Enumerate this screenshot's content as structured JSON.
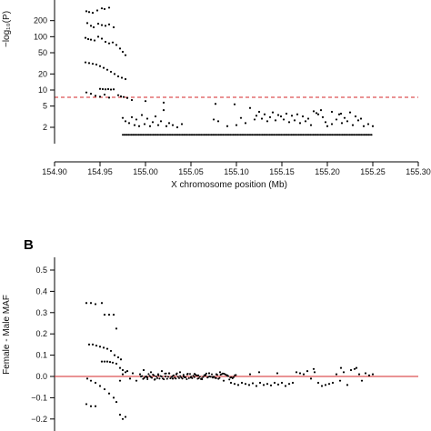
{
  "chart_data": [
    {
      "type": "scatter",
      "panel_label": "",
      "xlabel": "X chromosome position (Mb)",
      "ylabel": "−log₁₀(P)",
      "y_scale": "log",
      "xlim": [
        154.9,
        155.3
      ],
      "ylim": [
        1.3,
        380
      ],
      "x_ticks": [
        "154.90",
        "154.95",
        "155.00",
        "155.05",
        "155.10",
        "155.15",
        "155.20",
        "155.25",
        "155.30"
      ],
      "y_ticks": [
        {
          "value": 2,
          "label": "2"
        },
        {
          "value": 5,
          "label": "5"
        },
        {
          "value": 10,
          "label": "10"
        },
        {
          "value": 20,
          "label": "20"
        },
        {
          "value": 50,
          "label": "50"
        },
        {
          "value": 100,
          "label": "100"
        },
        {
          "value": 200,
          "label": "200"
        }
      ],
      "threshold": {
        "y": 7.3,
        "style": "dashed",
        "color": "#d62728"
      },
      "points": [
        [
          154.935,
          300
        ],
        [
          154.938,
          290
        ],
        [
          154.942,
          280
        ],
        [
          154.947,
          310
        ],
        [
          154.952,
          340
        ],
        [
          154.955,
          330
        ],
        [
          154.96,
          350
        ],
        [
          154.936,
          180
        ],
        [
          154.94,
          160
        ],
        [
          154.943,
          150
        ],
        [
          154.948,
          175
        ],
        [
          154.952,
          165
        ],
        [
          154.956,
          160
        ],
        [
          154.96,
          170
        ],
        [
          154.965,
          150
        ],
        [
          154.934,
          95
        ],
        [
          154.937,
          90
        ],
        [
          154.94,
          88
        ],
        [
          154.944,
          85
        ],
        [
          154.948,
          100
        ],
        [
          154.952,
          92
        ],
        [
          154.956,
          80
        ],
        [
          154.96,
          75
        ],
        [
          154.964,
          78
        ],
        [
          154.968,
          70
        ],
        [
          154.972,
          60
        ],
        [
          154.975,
          52
        ],
        [
          154.978,
          45
        ],
        [
          154.934,
          33
        ],
        [
          154.938,
          32
        ],
        [
          154.942,
          31
        ],
        [
          154.946,
          30
        ],
        [
          154.95,
          28
        ],
        [
          154.954,
          26
        ],
        [
          154.958,
          24
        ],
        [
          154.962,
          22
        ],
        [
          154.966,
          20
        ],
        [
          154.97,
          18
        ],
        [
          154.974,
          17
        ],
        [
          154.978,
          16
        ],
        [
          154.95,
          10.5
        ],
        [
          154.953,
          10.4
        ],
        [
          154.956,
          10.3
        ],
        [
          154.959,
          10.4
        ],
        [
          154.962,
          10.2
        ],
        [
          154.965,
          10.3
        ],
        [
          154.97,
          8
        ],
        [
          154.973,
          7.6
        ],
        [
          154.976,
          7.4
        ],
        [
          154.935,
          9
        ],
        [
          154.94,
          8.5
        ],
        [
          154.945,
          7.8
        ],
        [
          154.95,
          7.5
        ],
        [
          154.955,
          8.2
        ],
        [
          154.96,
          7.2
        ],
        [
          154.98,
          7.1
        ],
        [
          154.985,
          6.5
        ],
        [
          155.0,
          6.2
        ],
        [
          155.02,
          5.8
        ],
        [
          155.077,
          5.5
        ],
        [
          155.098,
          5.4
        ],
        [
          155.115,
          4.6
        ],
        [
          154.975,
          3
        ],
        [
          154.978,
          2.6
        ],
        [
          154.982,
          2.4
        ],
        [
          154.985,
          3.1
        ],
        [
          154.988,
          2.2
        ],
        [
          154.99,
          2.8
        ],
        [
          154.993,
          2.1
        ],
        [
          154.996,
          3.4
        ],
        [
          154.999,
          2.3
        ],
        [
          155.002,
          2.9
        ],
        [
          155.005,
          2.1
        ],
        [
          155.008,
          2.5
        ],
        [
          155.011,
          3.2
        ],
        [
          155.014,
          2.2
        ],
        [
          155.017,
          2.6
        ],
        [
          155.02,
          4.2
        ],
        [
          155.023,
          2.1
        ],
        [
          155.026,
          2.4
        ],
        [
          155.03,
          2.2
        ],
        [
          155.035,
          2
        ],
        [
          155.04,
          2.3
        ],
        [
          155.075,
          2.8
        ],
        [
          155.08,
          2.6
        ],
        [
          155.09,
          2.1
        ],
        [
          155.1,
          2.2
        ],
        [
          155.105,
          3
        ],
        [
          155.11,
          2.4
        ],
        [
          155.12,
          2.8
        ],
        [
          155.122,
          3.3
        ],
        [
          155.125,
          3.9
        ],
        [
          155.128,
          2.9
        ],
        [
          155.131,
          3.5
        ],
        [
          155.134,
          2.6
        ],
        [
          155.137,
          3.1
        ],
        [
          155.14,
          3.8
        ],
        [
          155.143,
          2.7
        ],
        [
          155.146,
          3.4
        ],
        [
          155.149,
          3.2
        ],
        [
          155.152,
          2.8
        ],
        [
          155.155,
          3.6
        ],
        [
          155.158,
          2.5
        ],
        [
          155.161,
          3.3
        ],
        [
          155.164,
          2.7
        ],
        [
          155.167,
          3.5
        ],
        [
          155.17,
          2.4
        ],
        [
          155.173,
          3.2
        ],
        [
          155.176,
          2.6
        ],
        [
          155.179,
          2.9
        ],
        [
          155.182,
          2.2
        ],
        [
          155.185,
          4
        ],
        [
          155.188,
          3.7
        ],
        [
          155.19,
          3.5
        ],
        [
          155.193,
          4.2
        ],
        [
          155.195,
          3.1
        ],
        [
          155.198,
          2.5
        ],
        [
          155.2,
          2.1
        ],
        [
          155.205,
          2.3
        ],
        [
          155.21,
          2.8
        ],
        [
          155.213,
          3.5
        ],
        [
          155.216,
          2.4
        ],
        [
          155.219,
          3
        ],
        [
          155.222,
          2.6
        ],
        [
          155.225,
          3.8
        ],
        [
          155.228,
          2.2
        ],
        [
          155.231,
          3.2
        ],
        [
          155.234,
          2.7
        ],
        [
          155.237,
          2.9
        ],
        [
          155.24,
          2.1
        ],
        [
          155.245,
          2.3
        ],
        [
          155.25,
          2.1
        ],
        [
          155.205,
          3.9
        ],
        [
          155.215,
          3.6
        ]
      ],
      "baseline_points": {
        "y": 1.45,
        "x_from": 154.975,
        "x_to": 155.25
      }
    },
    {
      "type": "scatter",
      "panel_label": "B",
      "xlabel": "",
      "ylabel": "Female - Male MAF",
      "xlim": [
        154.9,
        155.3
      ],
      "ylim": [
        -0.2,
        0.5
      ],
      "x_ticks": [],
      "y_ticks": [
        {
          "value": 0.5,
          "label": "0.5"
        },
        {
          "value": 0.4,
          "label": "0.4"
        },
        {
          "value": 0.3,
          "label": "0.3"
        },
        {
          "value": 0.2,
          "label": "0.2"
        },
        {
          "value": 0.1,
          "label": "0.1"
        },
        {
          "value": 0.0,
          "label": "0.0"
        },
        {
          "value": -0.1,
          "label": "−0.1"
        },
        {
          "value": -0.2,
          "label": "−0.2"
        }
      ],
      "reference_line": {
        "y": 0.0,
        "style": "solid",
        "color": "#d62728"
      },
      "points": [
        [
          154.935,
          0.345
        ],
        [
          154.94,
          0.345
        ],
        [
          154.945,
          0.34
        ],
        [
          154.952,
          0.345
        ],
        [
          154.955,
          0.29
        ],
        [
          154.96,
          0.29
        ],
        [
          154.965,
          0.29
        ],
        [
          154.968,
          0.225
        ],
        [
          154.938,
          0.15
        ],
        [
          154.942,
          0.15
        ],
        [
          154.946,
          0.145
        ],
        [
          154.95,
          0.14
        ],
        [
          154.954,
          0.135
        ],
        [
          154.958,
          0.13
        ],
        [
          154.962,
          0.12
        ],
        [
          154.966,
          0.1
        ],
        [
          154.97,
          0.09
        ],
        [
          154.973,
          0.08
        ],
        [
          154.952,
          0.07
        ],
        [
          154.955,
          0.07
        ],
        [
          154.958,
          0.07
        ],
        [
          154.961,
          0.068
        ],
        [
          154.964,
          0.065
        ],
        [
          154.968,
          0.06
        ],
        [
          154.972,
          0.04
        ],
        [
          154.975,
          0.03
        ],
        [
          154.978,
          0.02
        ],
        [
          154.936,
          -0.01
        ],
        [
          154.94,
          -0.02
        ],
        [
          154.945,
          -0.03
        ],
        [
          154.95,
          -0.045
        ],
        [
          154.955,
          -0.06
        ],
        [
          154.96,
          -0.08
        ],
        [
          154.965,
          -0.1
        ],
        [
          154.935,
          -0.13
        ],
        [
          154.94,
          -0.14
        ],
        [
          154.945,
          -0.14
        ],
        [
          154.968,
          -0.12
        ],
        [
          154.972,
          -0.18
        ],
        [
          154.975,
          -0.2
        ],
        [
          154.978,
          -0.19
        ],
        [
          154.972,
          -0.02
        ],
        [
          154.975,
          0.01
        ],
        [
          154.98,
          0.025
        ],
        [
          154.983,
          -0.01
        ],
        [
          154.986,
          0.015
        ],
        [
          154.99,
          -0.02
        ],
        [
          154.994,
          0.01
        ],
        [
          154.998,
          0.03
        ],
        [
          155.002,
          -0.005
        ],
        [
          155.006,
          0.02
        ],
        [
          155.01,
          -0.015
        ],
        [
          155.014,
          0.01
        ],
        [
          155.018,
          0.025
        ],
        [
          155.022,
          0
        ],
        [
          155.026,
          0.015
        ],
        [
          155.03,
          -0.01
        ],
        [
          155.034,
          0.01
        ],
        [
          155.038,
          0.02
        ],
        [
          155.042,
          0
        ],
        [
          155.046,
          0.01
        ],
        [
          155.05,
          -0.005
        ],
        [
          155.054,
          0.012
        ],
        [
          155.058,
          0.005
        ],
        [
          155.062,
          -0.01
        ],
        [
          155.066,
          0.008
        ],
        [
          155.07,
          0.015
        ],
        [
          155.074,
          -0.005
        ],
        [
          155.078,
          0.01
        ],
        [
          155.082,
          0.02
        ],
        [
          155.086,
          -0.02
        ],
        [
          155.09,
          0.005
        ],
        [
          155.094,
          -0.03
        ],
        [
          155.098,
          -0.035
        ],
        [
          155.102,
          -0.04
        ],
        [
          155.106,
          -0.03
        ],
        [
          155.11,
          -0.035
        ],
        [
          155.114,
          -0.04
        ],
        [
          155.118,
          -0.032
        ],
        [
          155.122,
          -0.045
        ],
        [
          155.126,
          -0.03
        ],
        [
          155.13,
          -0.04
        ],
        [
          155.134,
          -0.035
        ],
        [
          155.138,
          -0.042
        ],
        [
          155.142,
          -0.03
        ],
        [
          155.146,
          -0.038
        ],
        [
          155.15,
          -0.03
        ],
        [
          155.154,
          -0.045
        ],
        [
          155.158,
          -0.035
        ],
        [
          155.162,
          -0.03
        ],
        [
          155.166,
          0.02
        ],
        [
          155.17,
          0.015
        ],
        [
          155.174,
          0.01
        ],
        [
          155.178,
          0.025
        ],
        [
          155.182,
          -0.01
        ],
        [
          155.186,
          0.02
        ],
        [
          155.19,
          -0.03
        ],
        [
          155.194,
          -0.045
        ],
        [
          155.198,
          -0.04
        ],
        [
          155.202,
          -0.035
        ],
        [
          155.206,
          -0.03
        ],
        [
          155.21,
          0.01
        ],
        [
          155.214,
          -0.02
        ],
        [
          155.218,
          0.02
        ],
        [
          155.222,
          -0.04
        ],
        [
          155.226,
          0.03
        ],
        [
          155.23,
          0.035
        ],
        [
          155.232,
          0.04
        ],
        [
          155.235,
          0.01
        ],
        [
          155.238,
          -0.02
        ],
        [
          155.242,
          0.015
        ],
        [
          155.246,
          0.005
        ],
        [
          155.25,
          0.01
        ],
        [
          155.125,
          0.02
        ],
        [
          155.145,
          0.015
        ],
        [
          155.115,
          0.01
        ],
        [
          155.185,
          0.035
        ],
        [
          155.215,
          0.04
        ]
      ],
      "dense_band": {
        "y_from": -0.015,
        "y_to": 0.015,
        "x_from": 154.995,
        "x_to": 155.1
      }
    }
  ]
}
